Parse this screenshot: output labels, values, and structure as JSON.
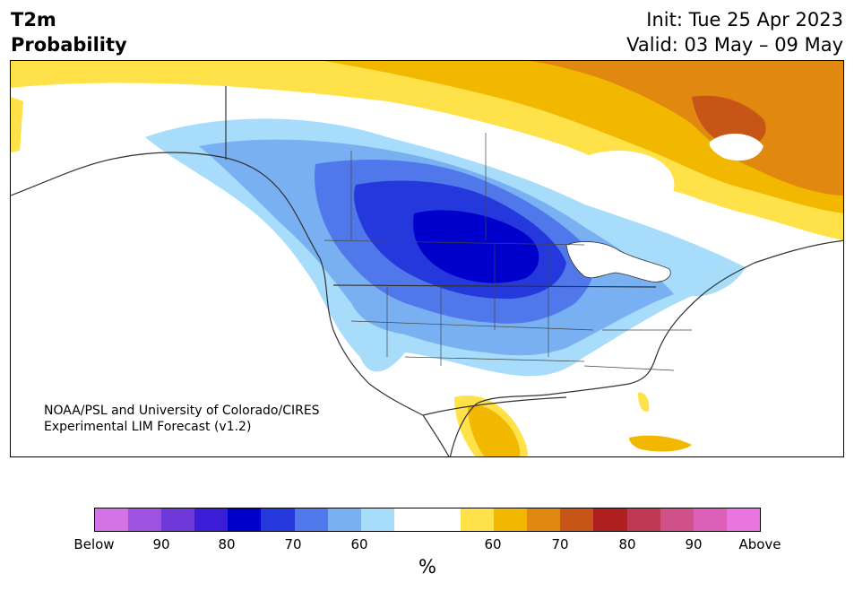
{
  "title": {
    "variable": "T2m",
    "kind": "Probability"
  },
  "dates": {
    "init": "Init: Tue 25 Apr 2023",
    "valid": "Valid: 03 May – 09 May"
  },
  "credit": {
    "line1": "NOAA/PSL and University of Colorado/CIRES",
    "line2": "Experimental LIM Forecast (v1.2)"
  },
  "colorbar": {
    "colors": [
      "#d473e6",
      "#9f52e0",
      "#6f38d8",
      "#3b1dd6",
      "#0000cc",
      "#2438dc",
      "#5078ea",
      "#78b0f2",
      "#a8dcfb",
      "#ffffff",
      "#ffffff",
      "#ffe14a",
      "#f2b800",
      "#e08810",
      "#c85518",
      "#b02020",
      "#c03a56",
      "#d0508a",
      "#dc60b8",
      "#e875e0"
    ],
    "ticks": [
      "Below",
      "90",
      "80",
      "70",
      "60",
      "60",
      "70",
      "80",
      "90",
      "Above"
    ],
    "units": "%"
  },
  "map": {
    "region": "North America",
    "cold_categories": [
      "60",
      "70",
      "80",
      "90"
    ],
    "warm_categories": [
      "60",
      "70"
    ]
  }
}
